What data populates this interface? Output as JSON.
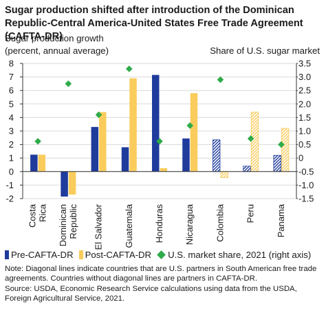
{
  "title": "Sugar production shifted after introduction of the Dominican Republic-Central America-United States Free Trade Agreement (CAFTA-DR)",
  "colors": {
    "pre": "#1f3c9c",
    "post": "#f9cc5c",
    "market": "#2eab4a",
    "grid": "#d9d9d9",
    "axis": "#333333"
  },
  "chart_data": {
    "type": "bar",
    "title": "Sugar production shifted after introduction of the Dominican Republic-Central America-United States Free Trade Agreement (CAFTA-DR)",
    "ylabel": "Sugar production growth\n(percent, annual average)",
    "y2label": "Share of U.S. sugar market",
    "categories": [
      "Costa Rica",
      "Dominican Republic",
      "El Salvador",
      "Guatemala",
      "Honduras",
      "Nicaragua",
      "Colombia",
      "Peru",
      "Panama"
    ],
    "hatched_categories": [
      "Colombia",
      "Peru",
      "Panama"
    ],
    "ylim": [
      -2,
      8
    ],
    "y2lim": [
      -1.5,
      3.5
    ],
    "yticks": [
      "8",
      "7",
      "6",
      "5",
      "4",
      "3",
      "2",
      "1",
      "0",
      "-1",
      "-2"
    ],
    "y2ticks": [
      "3.5",
      "3.0",
      "2.5",
      "2.0",
      "1.5",
      "1.0",
      "0.5",
      "0",
      "-0.5",
      "-1.0",
      "-1.5"
    ],
    "grid": true,
    "legend_position": "bottom",
    "series": [
      {
        "name": "Pre-CAFTA-DR",
        "axis": "left",
        "kind": "bar",
        "values": [
          1.25,
          -1.85,
          3.3,
          1.8,
          7.15,
          2.45,
          2.35,
          0.4,
          1.2
        ]
      },
      {
        "name": "Post-CAFTA-DR",
        "axis": "left",
        "kind": "bar",
        "values": [
          1.25,
          -1.7,
          4.4,
          6.9,
          0.25,
          5.8,
          -0.45,
          4.4,
          3.2
        ]
      },
      {
        "name": "U.S. market share, 2021 (right axis)",
        "axis": "right",
        "kind": "scatter",
        "values": [
          0.62,
          2.75,
          1.6,
          3.3,
          0.62,
          1.2,
          2.9,
          0.72,
          0.5
        ]
      }
    ]
  },
  "category_labels": [
    [
      "Costa",
      "Rica"
    ],
    [
      "Dominican",
      "Republic"
    ],
    [
      "El Salvador"
    ],
    [
      "Guatemala"
    ],
    [
      "Honduras"
    ],
    [
      "Nicaragua"
    ],
    [
      "Colombia"
    ],
    [
      "Peru"
    ],
    [
      "Panama"
    ]
  ],
  "ylabel_lines": [
    "Sugar production growth",
    "(percent, annual average)"
  ],
  "y2label": "Share of U.S. sugar market",
  "legend": {
    "pre": "Pre-CAFTA-DR",
    "post": "Post-CAFTA-DR",
    "market": "U.S. market share, 2021 (right axis)"
  },
  "notes": {
    "note": "Note: Diagonal lines indicate countries that are U.S. partners in South American free trade agreements. Countries without diagonal lines are partners in CAFTA-DR.",
    "source": "Source: USDA, Economic Research Service calculations using data from the USDA, Foreign Agricultural Service, 2021."
  }
}
